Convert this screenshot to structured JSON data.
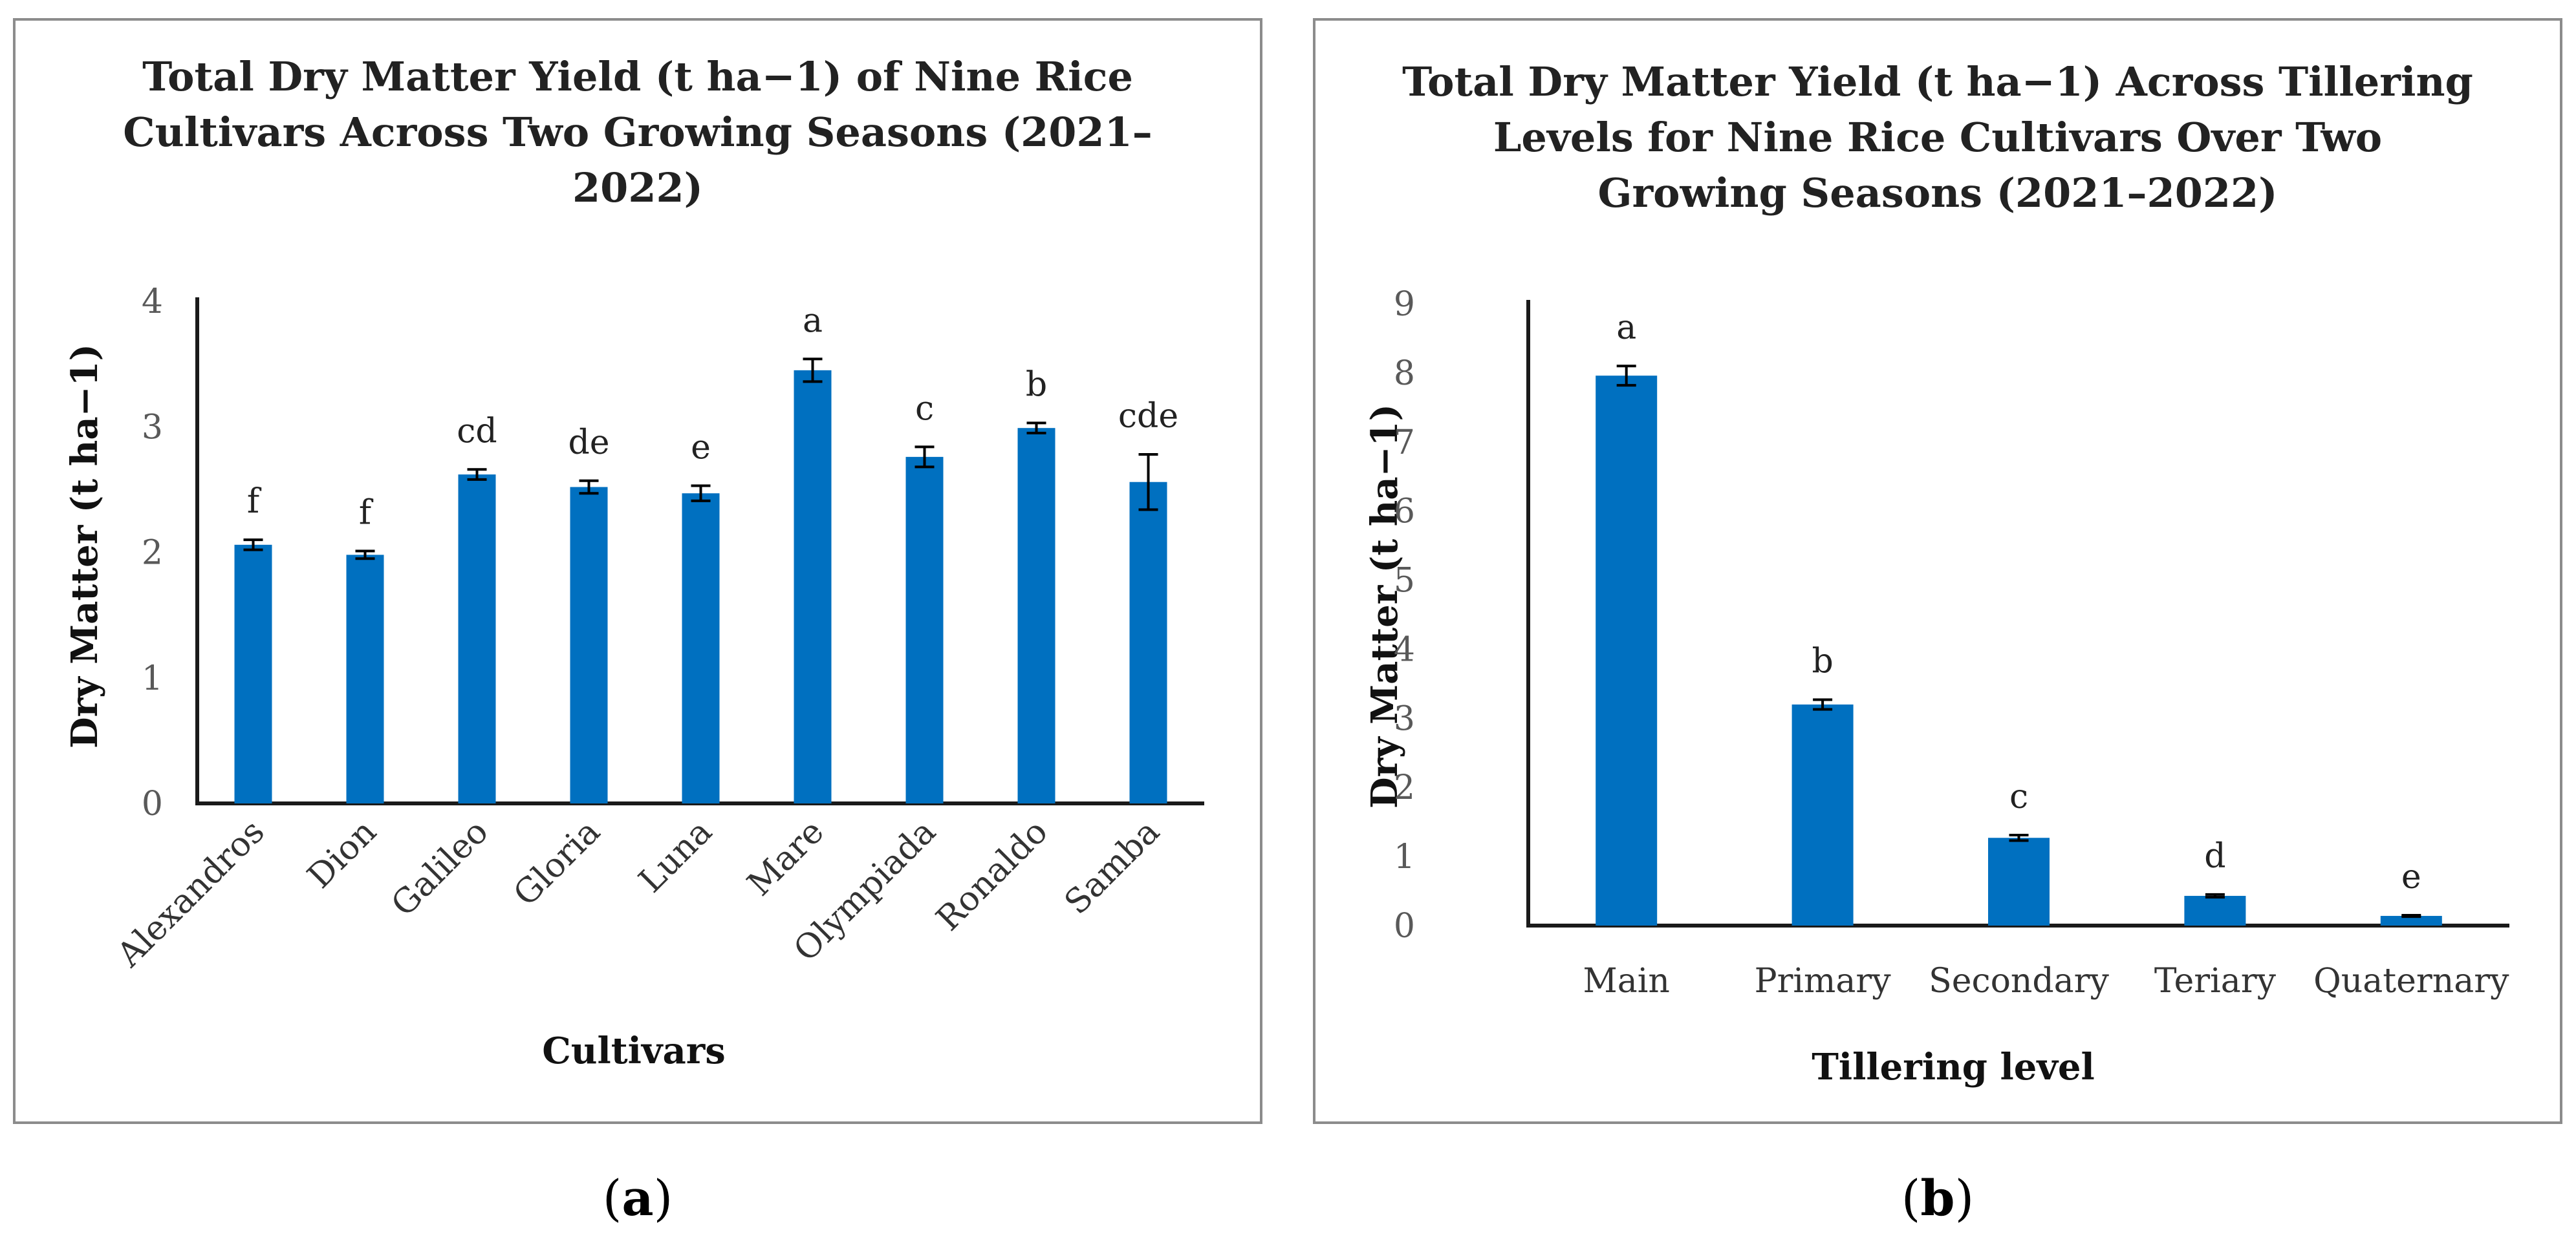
{
  "colors": {
    "bar": "#0070C0",
    "frame": "#8c8c8c",
    "axis": "#1a1a1a",
    "error_bar": "#000000"
  },
  "chart_data": [
    {
      "type": "bar",
      "title_lines": [
        "Total Dry Matter Yield (t ha−1) of Nine Rice",
        "Cultivars Across Two Growing Seasons (2021–",
        "2022)"
      ],
      "xlabel": "Cultivars",
      "ylabel": "Dry Matter (t ha−1)",
      "ylim": [
        0,
        4
      ],
      "yticks": [
        0,
        1,
        2,
        3,
        4
      ],
      "categories": [
        "Alexandros",
        "Dion",
        "Galileo",
        "Gloria",
        "Luna",
        "Mare",
        "Olympiada",
        "Ronaldo",
        "Samba"
      ],
      "values": [
        2.06,
        1.98,
        2.62,
        2.52,
        2.47,
        3.45,
        2.76,
        2.99,
        2.56
      ],
      "errors": [
        0.04,
        0.03,
        0.04,
        0.05,
        0.06,
        0.09,
        0.08,
        0.04,
        0.22
      ],
      "significance_letters": [
        "f",
        "f",
        "cd",
        "de",
        "e",
        "a",
        "c",
        "b",
        "cde"
      ],
      "rotated_category_labels": true,
      "grid": false,
      "caption": {
        "open": "(",
        "letter": "a",
        "close": ")"
      }
    },
    {
      "type": "bar",
      "title_lines": [
        "Total Dry Matter Yield (t ha−1) Across Tillering",
        "Levels for Nine Rice Cultivars Over Two",
        "Growing Seasons (2021–2022)"
      ],
      "xlabel": "Tillering level",
      "ylabel": "Dry Matter (t ha−1)",
      "ylim": [
        0,
        9
      ],
      "yticks": [
        0,
        1,
        2,
        3,
        4,
        5,
        6,
        7,
        8,
        9
      ],
      "categories": [
        "Main",
        "Primary",
        "Secondary",
        "Teriary",
        "Quaternary"
      ],
      "values": [
        7.96,
        3.2,
        1.27,
        0.43,
        0.14
      ],
      "errors": [
        0.14,
        0.07,
        0.04,
        0.02,
        0.01
      ],
      "significance_letters": [
        "a",
        "b",
        "c",
        "d",
        "e"
      ],
      "rotated_category_labels": false,
      "grid": false,
      "caption": {
        "open": "(",
        "letter": "b",
        "close": ")"
      }
    }
  ]
}
